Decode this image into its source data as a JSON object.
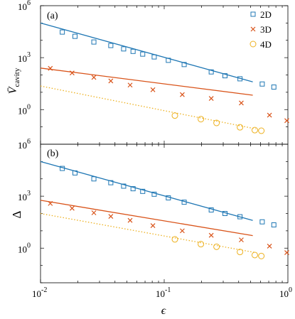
{
  "chart_data": [
    {
      "type": "scatter",
      "panel_label": "(a)",
      "ylabel": "V̄",
      "ylabel_sub": "cavity",
      "xlabel": "",
      "xscale": "log",
      "yscale": "log",
      "xlim": [
        0.01,
        1
      ],
      "ylim": [
        0.01,
        1000000
      ],
      "x_ticks": [
        0.01,
        0.1,
        1
      ],
      "y_ticks": [
        1,
        1000,
        1000000
      ],
      "x_tick_labels": [
        "10",
        "10",
        "10"
      ],
      "x_tick_exps": [
        "-2",
        "-1",
        "0"
      ],
      "y_tick_labels": [
        "10",
        "10",
        "10"
      ],
      "y_tick_exps": [
        "0",
        "3",
        "6"
      ],
      "legend": {
        "position": "top-right",
        "entries": [
          "2D",
          "3D",
          "4D"
        ]
      },
      "series": [
        {
          "name": "2D",
          "color": "#1f77b4",
          "marker": "square",
          "line_style": "solid",
          "line_x": [
            0.01,
            0.52
          ],
          "line_y": [
            100000,
            40
          ],
          "x": [
            0.015,
            0.019,
            0.027,
            0.037,
            0.047,
            0.056,
            0.067,
            0.083,
            0.108,
            0.145,
            0.24,
            0.31,
            0.41,
            0.62,
            0.77
          ],
          "y": [
            30000,
            17000,
            8000,
            5000,
            3200,
            2300,
            1600,
            1100,
            700,
            400,
            150,
            90,
            60,
            30,
            20
          ]
        },
        {
          "name": "3D",
          "color": "#d95319",
          "marker": "x",
          "line_style": "solid",
          "line_x": [
            0.01,
            0.52
          ],
          "line_y": [
            250,
            6.8
          ],
          "x": [
            0.012,
            0.018,
            0.027,
            0.037,
            0.053,
            0.081,
            0.14,
            0.24,
            0.42,
            0.71,
            0.98
          ],
          "y": [
            240,
            130,
            72,
            45,
            26,
            14,
            7.3,
            4.4,
            2.4,
            0.48,
            0.23
          ]
        },
        {
          "name": "4D",
          "color": "#edb120",
          "marker": "circle",
          "line_style": "dotted",
          "line_x": [
            0.01,
            0.55
          ],
          "line_y": [
            23,
            0.077
          ],
          "x": [
            0.122,
            0.198,
            0.265,
            0.41,
            0.54,
            0.61
          ],
          "y": [
            0.45,
            0.28,
            0.17,
            0.095,
            0.065,
            0.06
          ]
        }
      ]
    },
    {
      "type": "scatter",
      "panel_label": "(b)",
      "ylabel": "Δ",
      "xlabel": "ϵ",
      "xscale": "log",
      "yscale": "log",
      "xlim": [
        0.01,
        1
      ],
      "ylim": [
        0.01,
        1000000
      ],
      "x_ticks": [
        0.01,
        0.1,
        1
      ],
      "y_ticks": [
        1,
        1000,
        1000000
      ],
      "x_tick_labels": [
        "10",
        "10",
        "10"
      ],
      "x_tick_exps": [
        "-2",
        "-1",
        "0"
      ],
      "y_tick_labels": [
        "10",
        "10",
        "10"
      ],
      "y_tick_exps": [
        "0",
        "3",
        "6"
      ],
      "series": [
        {
          "name": "2D",
          "color": "#1f77b4",
          "marker": "square",
          "line_style": "solid",
          "line_x": [
            0.01,
            0.52
          ],
          "line_y": [
            100000,
            40
          ],
          "x": [
            0.015,
            0.019,
            0.027,
            0.037,
            0.047,
            0.056,
            0.067,
            0.083,
            0.108,
            0.145,
            0.24,
            0.31,
            0.41,
            0.62,
            0.77
          ],
          "y": [
            40000,
            22000,
            10000,
            6000,
            3800,
            2700,
            1900,
            1300,
            800,
            450,
            160,
            100,
            65,
            33,
            22
          ]
        },
        {
          "name": "3D",
          "color": "#d95319",
          "marker": "x",
          "line_style": "solid",
          "line_x": [
            0.01,
            0.52
          ],
          "line_y": [
            580,
            5.3
          ],
          "x": [
            0.012,
            0.018,
            0.027,
            0.037,
            0.053,
            0.081,
            0.14,
            0.24,
            0.42,
            0.71,
            0.98
          ],
          "y": [
            380,
            200,
            110,
            68,
            40,
            20,
            10,
            5.5,
            3,
            1.3,
            0.55
          ]
        },
        {
          "name": "4D",
          "color": "#edb120",
          "marker": "circle",
          "line_style": "dotted",
          "line_x": [
            0.01,
            0.55
          ],
          "line_y": [
            100,
            0.55
          ],
          "x": [
            0.122,
            0.198,
            0.265,
            0.41,
            0.54,
            0.61
          ],
          "y": [
            3.2,
            1.7,
            1.2,
            0.6,
            0.4,
            0.35
          ]
        }
      ]
    }
  ]
}
